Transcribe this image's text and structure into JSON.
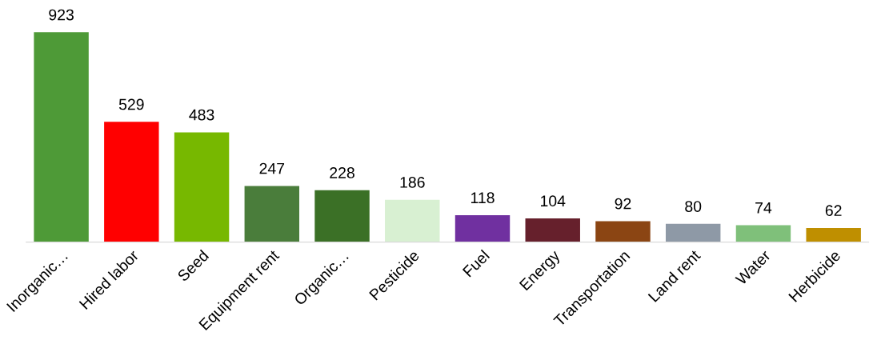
{
  "chart_data": {
    "type": "bar",
    "categories": [
      "Inorganic…",
      "Hired labor",
      "Seed",
      "Equipment rent",
      "Organic…",
      "Pesticide",
      "Fuel",
      "Energy",
      "Transportation",
      "Land rent",
      "Water",
      "Herbicide"
    ],
    "values": [
      923,
      529,
      483,
      247,
      228,
      186,
      118,
      104,
      92,
      80,
      74,
      62
    ],
    "colors": [
      "#4e9a37",
      "#ff0000",
      "#77b800",
      "#4a7d3b",
      "#3b7026",
      "#d8f0d2",
      "#7030a0",
      "#66202c",
      "#8b4513",
      "#8e99a6",
      "#7fc07a",
      "#bf8f00"
    ],
    "data_labels": true,
    "tick_labels": "x",
    "grid": false
  }
}
